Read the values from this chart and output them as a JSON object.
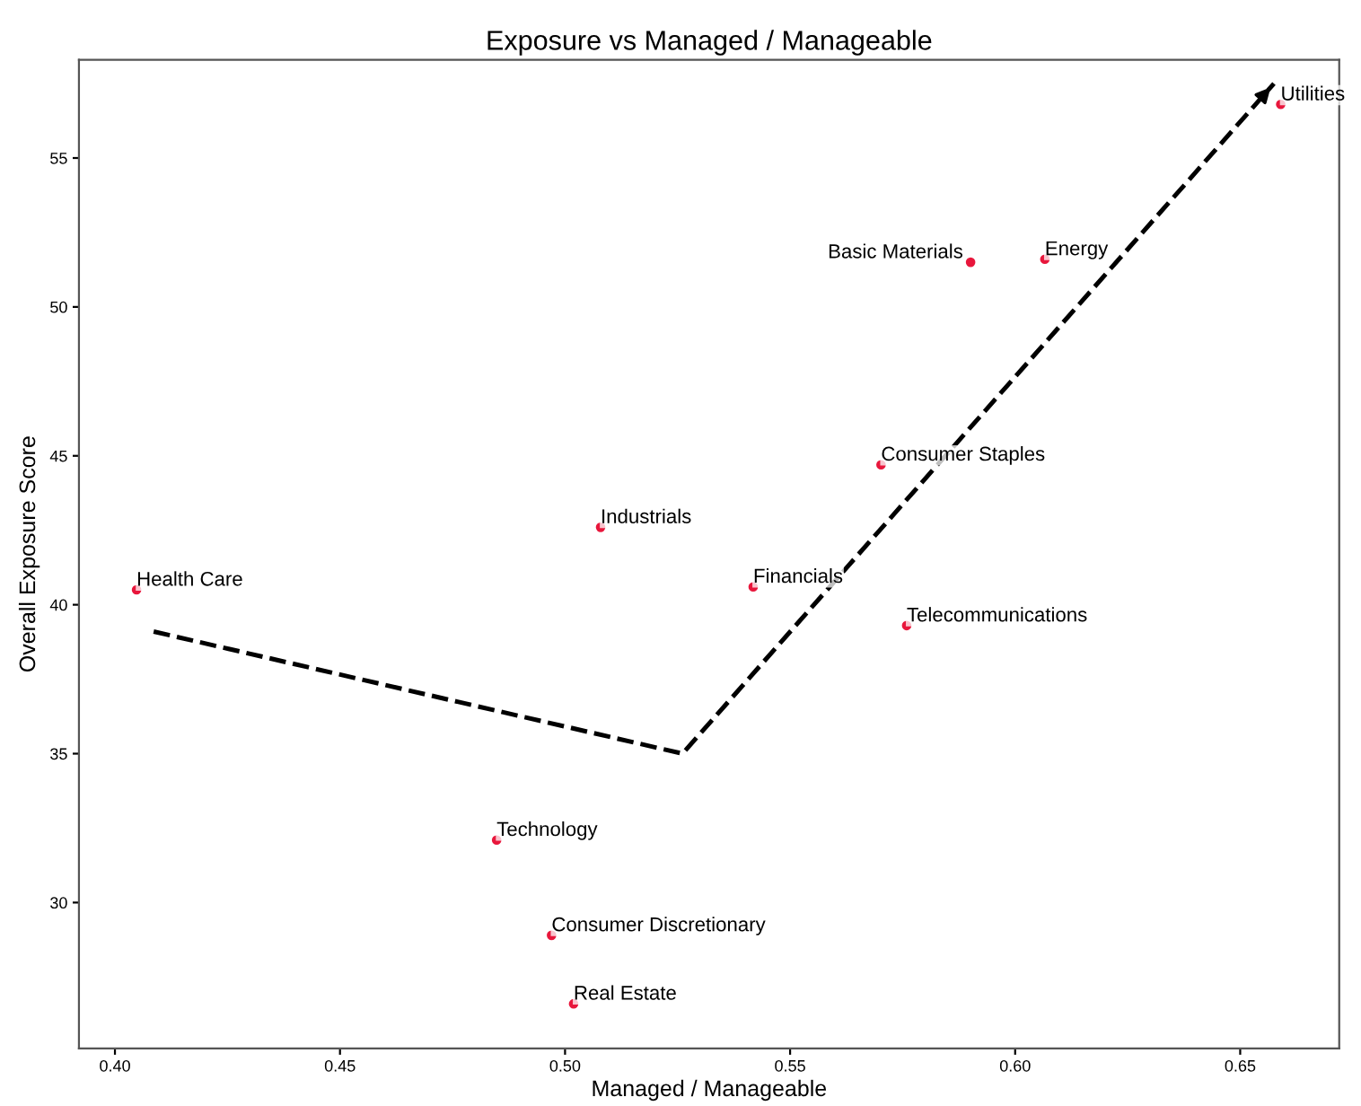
{
  "chart_data": {
    "type": "scatter",
    "title": "Exposure vs Managed / Manageable",
    "xlabel": "Managed / Manageable",
    "ylabel": "Overall Exposure Score",
    "series": [
      {
        "color": "#e8173c",
        "marker": "circle",
        "x": [
          0.4048,
          0.5079,
          0.4848,
          0.497,
          0.5019,
          0.5418,
          0.5759,
          0.5702,
          0.5901,
          0.6066,
          0.659
        ],
        "values": [
          40.5,
          42.6,
          32.1,
          28.9,
          26.6,
          40.6,
          39.3,
          44.7,
          51.5,
          51.6,
          56.8
        ]
      },
      {
        "type": "line",
        "color": "#000000",
        "line_style": "dashed",
        "marker": "none",
        "x": [
          0.4086,
          0.5261,
          0.6575
        ],
        "values": [
          39.1,
          35.0,
          57.5
        ]
      }
    ],
    "annotations": [
      {
        "text": "Health Care",
        "x": 0.4048,
        "y": 40.5
      },
      {
        "text": "Industrials",
        "x": 0.5079,
        "y": 42.6
      },
      {
        "text": "Technology",
        "x": 0.4848,
        "y": 32.1
      },
      {
        "text": "Consumer Discretionary",
        "x": 0.497,
        "y": 28.9
      },
      {
        "text": "Real Estate",
        "x": 0.5019,
        "y": 26.6
      },
      {
        "text": "Financials",
        "x": 0.5418,
        "y": 40.6
      },
      {
        "text": "Telecommunications",
        "x": 0.5759,
        "y": 39.3
      },
      {
        "text": "Consumer Staples",
        "x": 0.5702,
        "y": 44.7
      },
      {
        "text": "Basic Materials",
        "x": 0.5901,
        "y": 51.5
      },
      {
        "text": "Energy",
        "x": 0.6066,
        "y": 51.6
      },
      {
        "text": "Utilities",
        "x": 0.659,
        "y": 56.8
      }
    ],
    "xlim": [
      0.392,
      0.672
    ],
    "ylim": [
      25.1,
      58.3
    ],
    "xticks": [
      {
        "value": 0.4,
        "label": "0.40"
      },
      {
        "value": 0.45,
        "label": "0.45"
      },
      {
        "value": 0.5,
        "label": "0.50"
      },
      {
        "value": 0.55,
        "label": "0.55"
      },
      {
        "value": 0.6,
        "label": "0.60"
      },
      {
        "value": 0.65,
        "label": "0.65"
      }
    ],
    "yticks": [
      30,
      35,
      40,
      45,
      50,
      55
    ],
    "grid": false,
    "legend": false
  }
}
